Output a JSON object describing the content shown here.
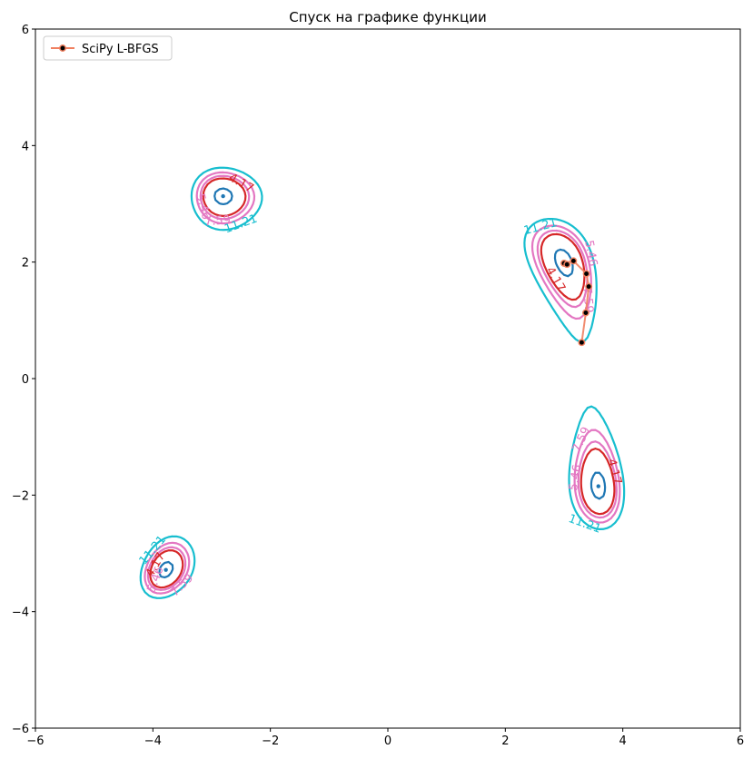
{
  "chart_data": {
    "type": "contour",
    "title": "Спуск на графике функции",
    "xlim": [
      -6,
      6
    ],
    "ylim": [
      -6,
      6
    ],
    "xticks": [
      -6,
      -4,
      -2,
      0,
      2,
      4,
      6
    ],
    "yticks": [
      -6,
      -4,
      -2,
      0,
      2,
      4,
      6
    ],
    "xtick_labels": [
      "−6",
      "−4",
      "−2",
      "0",
      "2",
      "4",
      "6"
    ],
    "ytick_labels": [
      "−6",
      "−4",
      "−2",
      "0",
      "2",
      "4",
      "6"
    ],
    "grid": false,
    "legend_position": "top-left",
    "contour_levels": [
      {
        "value": 0.75,
        "label": "",
        "color": "#1f77b4"
      },
      {
        "value": 4.17,
        "label": "4.17",
        "color": "#d62728"
      },
      {
        "value": 5.46,
        "label": "5.46",
        "color": "#e377c2"
      },
      {
        "value": 7.59,
        "label": "7.59",
        "color": "#e377c2"
      },
      {
        "value": 11.21,
        "label": "11.21",
        "color": "#17becf"
      }
    ],
    "minima": [
      {
        "x": 3.0,
        "y": 2.0
      },
      {
        "x": -2.805,
        "y": 3.131
      },
      {
        "x": -3.779,
        "y": -3.283
      },
      {
        "x": 3.584,
        "y": -1.848
      }
    ],
    "series": [
      {
        "name": "SciPy L-BFGS",
        "color": "#f08060",
        "marker_color": "#000000",
        "points": [
          {
            "x": 3.3,
            "y": 0.62
          },
          {
            "x": 3.37,
            "y": 1.13
          },
          {
            "x": 3.42,
            "y": 1.58
          },
          {
            "x": 3.38,
            "y": 1.8
          },
          {
            "x": 3.16,
            "y": 2.02
          },
          {
            "x": 3.0,
            "y": 1.98
          },
          {
            "x": 3.05,
            "y": 1.96
          }
        ]
      }
    ]
  }
}
